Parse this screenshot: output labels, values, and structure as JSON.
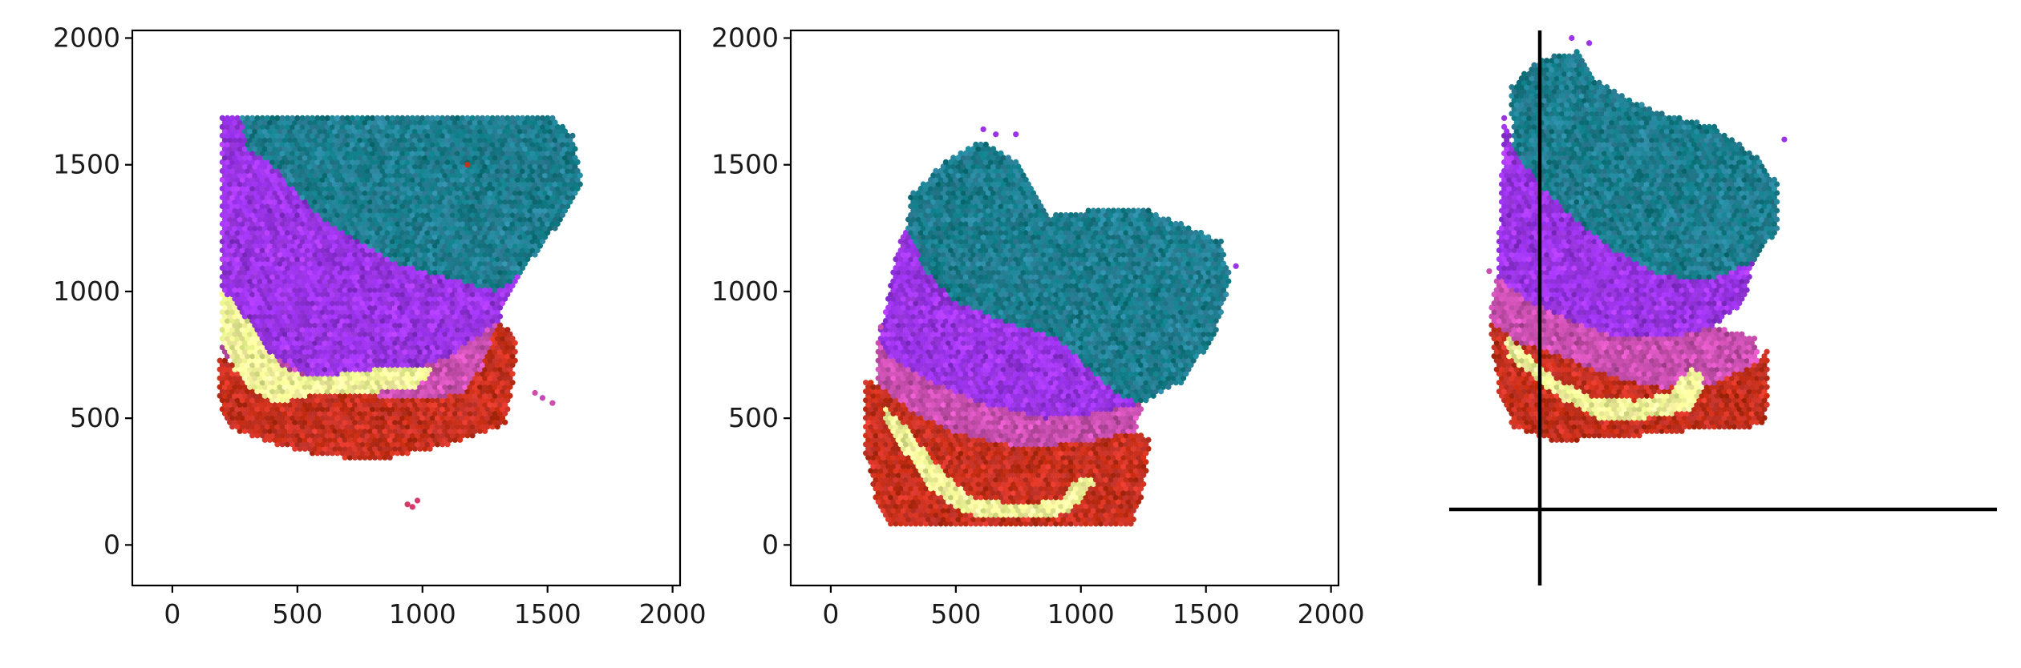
{
  "chart_data": [
    {
      "type": "scatter",
      "title": "",
      "xlabel": "",
      "ylabel": "",
      "xlim": [
        -160,
        2030
      ],
      "ylim": [
        -160,
        2030
      ],
      "xticks": [
        "0",
        "500",
        "1000",
        "1500",
        "2000"
      ],
      "yticks": [
        "0",
        "500",
        "1000",
        "1500",
        "2000"
      ],
      "frame": "box",
      "grid": false,
      "legend": "none",
      "color_scheme": "pseudo-RGB spatial embedding (teal, violet, magenta, red, pale yellow)",
      "spot_grid_step": 20,
      "regions": [
        {
          "name": "teal",
          "color": "#1d7d8e",
          "polygon": [
            [
              270,
              1700
            ],
            [
              1510,
              1700
            ],
            [
              1600,
              1620
            ],
            [
              1640,
              1420
            ],
            [
              1540,
              1260
            ],
            [
              1400,
              1080
            ],
            [
              1300,
              1000
            ],
            [
              900,
              1110
            ],
            [
              600,
              1280
            ],
            [
              400,
              1500
            ],
            [
              300,
              1560
            ]
          ]
        },
        {
          "name": "violet",
          "color": "#9a34e6",
          "polygon": [
            [
              200,
              1690
            ],
            [
              270,
              1700
            ],
            [
              300,
              1560
            ],
            [
              400,
              1500
            ],
            [
              600,
              1280
            ],
            [
              900,
              1110
            ],
            [
              1300,
              1000
            ],
            [
              1400,
              1080
            ],
            [
              1300,
              880
            ],
            [
              1100,
              740
            ],
            [
              800,
              640
            ],
            [
              560,
              650
            ],
            [
              300,
              820
            ],
            [
              200,
              1000
            ]
          ]
        },
        {
          "name": "magenta",
          "color": "#c94fb0",
          "polygon": [
            [
              200,
              1000
            ],
            [
              300,
              820
            ],
            [
              560,
              650
            ],
            [
              800,
              640
            ],
            [
              1100,
              740
            ],
            [
              1300,
              880
            ],
            [
              1240,
              700
            ],
            [
              1150,
              590
            ],
            [
              900,
              580
            ],
            [
              700,
              600
            ],
            [
              480,
              640
            ],
            [
              300,
              700
            ],
            [
              190,
              760
            ]
          ]
        },
        {
          "name": "red",
          "color": "#c6301e",
          "polygon": [
            [
              190,
              740
            ],
            [
              300,
              700
            ],
            [
              480,
              640
            ],
            [
              700,
              600
            ],
            [
              900,
              580
            ],
            [
              1150,
              590
            ],
            [
              1240,
              700
            ],
            [
              1300,
              880
            ],
            [
              1380,
              820
            ],
            [
              1360,
              620
            ],
            [
              1330,
              470
            ],
            [
              1100,
              390
            ],
            [
              800,
              330
            ],
            [
              560,
              360
            ],
            [
              400,
              400
            ],
            [
              230,
              460
            ],
            [
              190,
              560
            ]
          ]
        },
        {
          "name": "yellow",
          "color": "#f3f59a",
          "polygon": [
            [
              200,
              1000
            ],
            [
              260,
              950
            ],
            [
              340,
              820
            ],
            [
              440,
              700
            ],
            [
              560,
              660
            ],
            [
              760,
              690
            ],
            [
              1060,
              710
            ],
            [
              980,
              620
            ],
            [
              760,
              600
            ],
            [
              540,
              590
            ],
            [
              420,
              560
            ],
            [
              330,
              600
            ],
            [
              250,
              690
            ],
            [
              200,
              800
            ]
          ]
        }
      ],
      "satellite_spots": [
        {
          "x": 1520,
          "y": 560,
          "color": "#d04db0"
        },
        {
          "x": 1480,
          "y": 580,
          "color": "#c84ab8"
        },
        {
          "x": 1450,
          "y": 600,
          "color": "#cc4fa8"
        },
        {
          "x": 1180,
          "y": 1500,
          "color": "#c6301e"
        },
        {
          "x": 940,
          "y": 160,
          "color": "#d63a6a"
        },
        {
          "x": 980,
          "y": 175,
          "color": "#d63a6a"
        },
        {
          "x": 960,
          "y": 150,
          "color": "#d63a6a"
        }
      ]
    },
    {
      "type": "scatter",
      "title": "",
      "xlabel": "",
      "ylabel": "",
      "xlim": [
        -160,
        2030
      ],
      "ylim": [
        -160,
        2030
      ],
      "xticks": [
        "0",
        "500",
        "1000",
        "1500",
        "2000"
      ],
      "yticks": [
        "0",
        "500",
        "1000",
        "1500",
        "2000"
      ],
      "frame": "box",
      "grid": false,
      "legend": "none",
      "color_scheme": "pseudo-RGB spatial embedding (teal, violet, magenta, red, pale yellow)",
      "spot_grid_step": 20,
      "regions": [
        {
          "name": "teal",
          "color": "#1d7d8e",
          "polygon": [
            [
              320,
              1380
            ],
            [
              460,
              1520
            ],
            [
              600,
              1600
            ],
            [
              760,
              1510
            ],
            [
              880,
              1300
            ],
            [
              1100,
              1330
            ],
            [
              1250,
              1330
            ],
            [
              1420,
              1260
            ],
            [
              1560,
              1200
            ],
            [
              1600,
              1050
            ],
            [
              1540,
              830
            ],
            [
              1400,
              640
            ],
            [
              1250,
              560
            ],
            [
              1150,
              590
            ],
            [
              900,
              820
            ],
            [
              700,
              880
            ],
            [
              500,
              960
            ],
            [
              380,
              1080
            ],
            [
              300,
              1200
            ]
          ]
        },
        {
          "name": "violet",
          "color": "#9a34e6",
          "polygon": [
            [
              300,
              1260
            ],
            [
              380,
              1080
            ],
            [
              500,
              960
            ],
            [
              700,
              880
            ],
            [
              900,
              820
            ],
            [
              1150,
              590
            ],
            [
              1250,
              560
            ],
            [
              1060,
              520
            ],
            [
              860,
              500
            ],
            [
              600,
              560
            ],
            [
              420,
              640
            ],
            [
              260,
              720
            ],
            [
              190,
              800
            ],
            [
              230,
              1000
            ],
            [
              260,
              1140
            ]
          ]
        },
        {
          "name": "magenta",
          "color": "#c94fb0",
          "polygon": [
            [
              190,
              800
            ],
            [
              260,
              720
            ],
            [
              420,
              640
            ],
            [
              600,
              560
            ],
            [
              860,
              500
            ],
            [
              1060,
              520
            ],
            [
              1250,
              560
            ],
            [
              1220,
              450
            ],
            [
              1000,
              400
            ],
            [
              740,
              390
            ],
            [
              500,
              440
            ],
            [
              320,
              530
            ],
            [
              180,
              640
            ]
          ]
        },
        {
          "name": "red",
          "color": "#c6301e",
          "polygon": [
            [
              140,
              660
            ],
            [
              180,
              640
            ],
            [
              320,
              530
            ],
            [
              500,
              440
            ],
            [
              740,
              390
            ],
            [
              1000,
              400
            ],
            [
              1220,
              450
            ],
            [
              1280,
              420
            ],
            [
              1240,
              160
            ],
            [
              1200,
              80
            ],
            [
              900,
              80
            ],
            [
              600,
              80
            ],
            [
              240,
              80
            ],
            [
              180,
              180
            ],
            [
              140,
              360
            ]
          ]
        },
        {
          "name": "yellow",
          "color": "#f3f59a",
          "polygon": [
            [
              200,
              560
            ],
            [
              300,
              470
            ],
            [
              420,
              320
            ],
            [
              560,
              190
            ],
            [
              760,
              160
            ],
            [
              920,
              180
            ],
            [
              1000,
              280
            ],
            [
              1060,
              250
            ],
            [
              950,
              120
            ],
            [
              760,
              110
            ],
            [
              540,
              120
            ],
            [
              400,
              220
            ],
            [
              300,
              360
            ],
            [
              220,
              480
            ]
          ]
        }
      ],
      "satellite_spots": [
        {
          "x": 610,
          "y": 1640,
          "color": "#9a34e6"
        },
        {
          "x": 660,
          "y": 1620,
          "color": "#9a34e6"
        },
        {
          "x": 740,
          "y": 1620,
          "color": "#9a34e6"
        },
        {
          "x": 1620,
          "y": 1100,
          "color": "#9a34e6"
        },
        {
          "x": 200,
          "y": 860,
          "color": "#c94fb0"
        },
        {
          "x": 150,
          "y": 600,
          "color": "#c6301e"
        }
      ]
    },
    {
      "type": "scatter",
      "title": "",
      "xlabel": "",
      "ylabel": "",
      "xlim": [
        -160,
        2030
      ],
      "ylim": [
        -160,
        2030
      ],
      "xticks": [],
      "yticks": [],
      "frame": "center spines",
      "grid": false,
      "legend": "none",
      "color_scheme": "pseudo-RGB spatial embedding (teal, violet, magenta, red, pale yellow)",
      "spot_grid_step": 20,
      "regions": [
        {
          "name": "teal",
          "color": "#1d7d8e",
          "polygon": [
            [
              80,
              1800
            ],
            [
              200,
              1920
            ],
            [
              360,
              1950
            ],
            [
              420,
              1840
            ],
            [
              560,
              1760
            ],
            [
              700,
              1700
            ],
            [
              900,
              1650
            ],
            [
              1060,
              1540
            ],
            [
              1160,
              1420
            ],
            [
              1150,
              1240
            ],
            [
              1060,
              1120
            ],
            [
              900,
              1050
            ],
            [
              700,
              1060
            ],
            [
              500,
              1160
            ],
            [
              350,
              1280
            ],
            [
              200,
              1420
            ],
            [
              100,
              1560
            ]
          ]
        },
        {
          "name": "violet",
          "color": "#9a34e6",
          "polygon": [
            [
              60,
              1700
            ],
            [
              100,
              1560
            ],
            [
              200,
              1420
            ],
            [
              350,
              1280
            ],
            [
              500,
              1160
            ],
            [
              700,
              1060
            ],
            [
              900,
              1050
            ],
            [
              1060,
              1120
            ],
            [
              1020,
              960
            ],
            [
              900,
              860
            ],
            [
              720,
              820
            ],
            [
              520,
              820
            ],
            [
              340,
              880
            ],
            [
              160,
              960
            ],
            [
              30,
              1040
            ]
          ]
        },
        {
          "name": "magenta",
          "color": "#c94fb0",
          "polygon": [
            [
              30,
              1060
            ],
            [
              160,
              960
            ],
            [
              340,
              880
            ],
            [
              520,
              820
            ],
            [
              720,
              820
            ],
            [
              900,
              860
            ],
            [
              1060,
              820
            ],
            [
              1080,
              720
            ],
            [
              900,
              640
            ],
            [
              700,
              620
            ],
            [
              500,
              660
            ],
            [
              300,
              740
            ],
            [
              120,
              800
            ],
            [
              0,
              880
            ]
          ]
        },
        {
          "name": "red",
          "color": "#c6301e",
          "polygon": [
            [
              0,
              880
            ],
            [
              120,
              800
            ],
            [
              300,
              740
            ],
            [
              500,
              660
            ],
            [
              700,
              620
            ],
            [
              900,
              640
            ],
            [
              1080,
              720
            ],
            [
              1110,
              770
            ],
            [
              1120,
              600
            ],
            [
              1100,
              470
            ],
            [
              800,
              450
            ],
            [
              500,
              420
            ],
            [
              260,
              410
            ],
            [
              100,
              460
            ],
            [
              40,
              600
            ]
          ]
        },
        {
          "name": "yellow",
          "color": "#f3f59a",
          "polygon": [
            [
              60,
              830
            ],
            [
              150,
              760
            ],
            [
              260,
              660
            ],
            [
              420,
              580
            ],
            [
              580,
              570
            ],
            [
              720,
              600
            ],
            [
              800,
              700
            ],
            [
              870,
              660
            ],
            [
              800,
              530
            ],
            [
              620,
              500
            ],
            [
              440,
              500
            ],
            [
              300,
              570
            ],
            [
              180,
              660
            ],
            [
              80,
              740
            ]
          ]
        }
      ],
      "satellite_spots": [
        {
          "x": 330,
          "y": 2000,
          "color": "#9a34e6"
        },
        {
          "x": 400,
          "y": 1980,
          "color": "#9a34e6"
        },
        {
          "x": 0,
          "y": 1080,
          "color": "#c94fb0"
        },
        {
          "x": 1180,
          "y": 1600,
          "color": "#9a34e6"
        }
      ]
    }
  ]
}
